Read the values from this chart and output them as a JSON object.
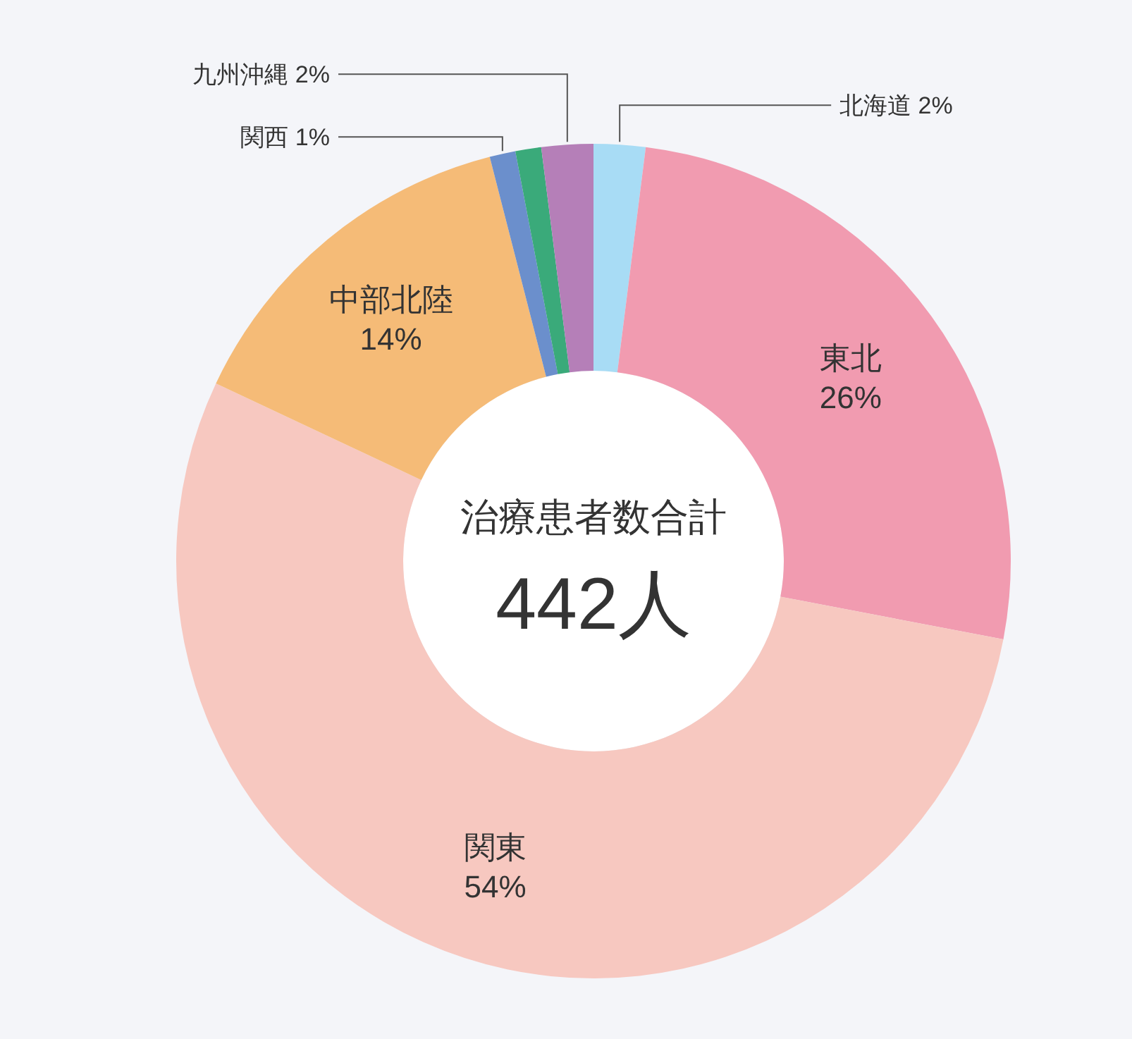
{
  "chart_data": {
    "type": "donut",
    "categories": [
      "北海道",
      "東北",
      "関東",
      "中部北陸",
      "関西",
      null,
      "九州沖縄"
    ],
    "values": [
      2,
      26,
      54,
      14,
      1,
      1,
      2
    ],
    "value_labels": [
      "2%",
      "26%",
      "54%",
      "14%",
      "1%",
      null,
      "2%"
    ],
    "colors": [
      "#a8dcf5",
      "#f19bb0",
      "#f7c8c0",
      "#f5bb77",
      "#6b8fcc",
      "#3aaa7a",
      "#b57fb8"
    ],
    "annotations": [
      "治療患者数合計",
      "442人"
    ]
  }
}
